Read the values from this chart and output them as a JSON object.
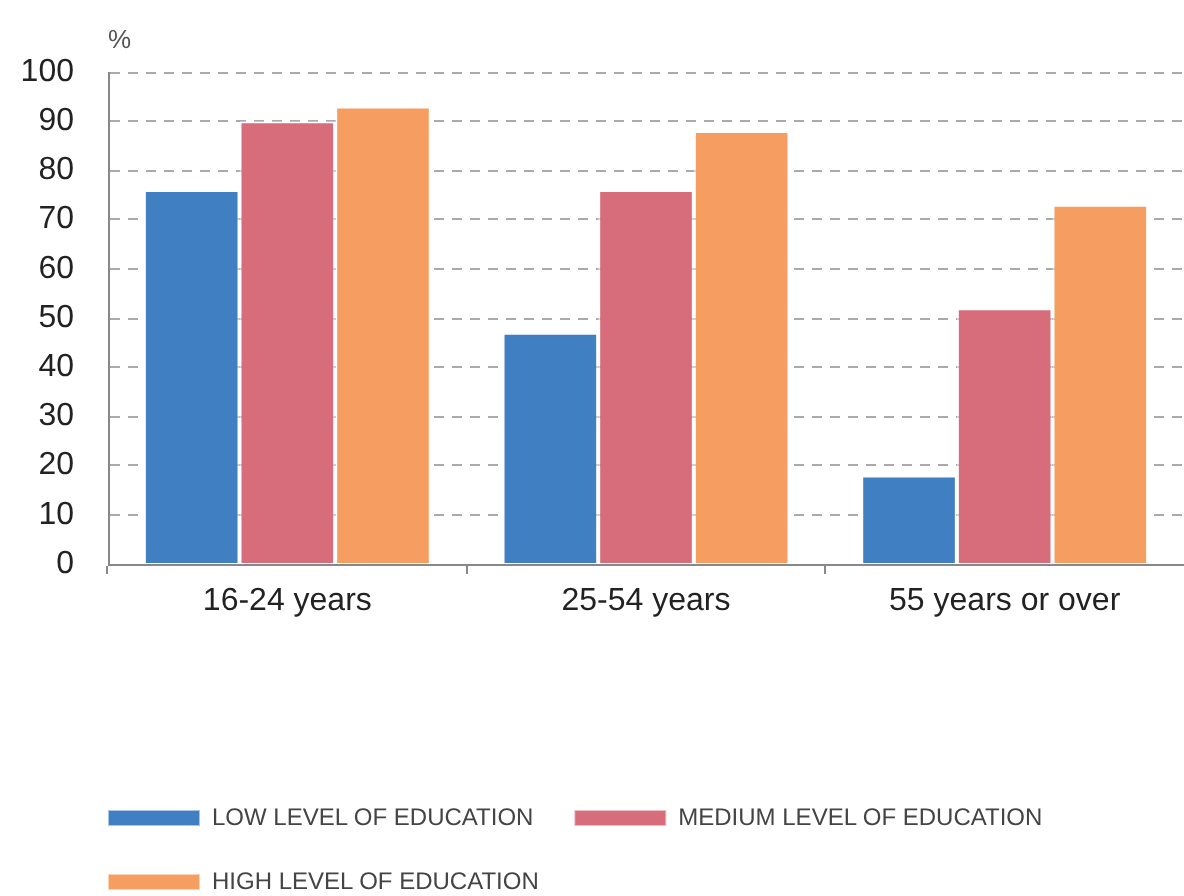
{
  "chart_data": {
    "type": "bar",
    "ylabel": "%",
    "categories": [
      "16-24 years",
      "25-54 years",
      "55 years or over"
    ],
    "series": [
      {
        "name": "LOW LEVEL OF EDUCATION",
        "color": "#3f7fc2",
        "values": [
          76,
          47,
          18
        ]
      },
      {
        "name": "MEDIUM LEVEL OF EDUCATION",
        "color": "#d76c7a",
        "values": [
          90,
          76,
          52
        ]
      },
      {
        "name": "HIGH LEVEL OF EDUCATION",
        "color": "#f69d61",
        "values": [
          93,
          88,
          73
        ]
      }
    ],
    "ylim": [
      0,
      100
    ],
    "yticks": [
      0,
      10,
      20,
      30,
      40,
      50,
      60,
      70,
      80,
      90,
      100
    ],
    "grid": "y",
    "legend": "bottom"
  }
}
